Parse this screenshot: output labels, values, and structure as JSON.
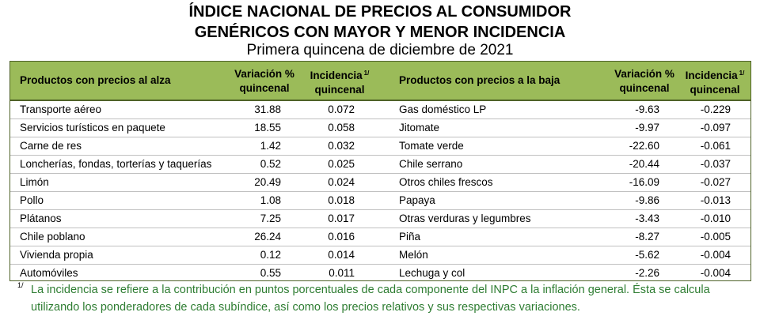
{
  "title_line1": "ÍNDICE NACIONAL DE PRECIOS AL CONSUMIDOR",
  "title_line2": "GENÉRICOS CON MAYOR Y MENOR INCIDENCIA",
  "subtitle": "Primera quincena de diciembre de 2021",
  "headers": {
    "up_products": "Productos con precios al alza",
    "up_var_l1": "Variación %",
    "up_var_l2": "quincenal",
    "up_inc_l1": "Incidencia",
    "up_inc_sup": "1/",
    "up_inc_l2": "quincenal",
    "down_products": "Productos con precios a la baja",
    "down_var_l1": "Variación %",
    "down_var_l2": "quincenal",
    "down_inc_l1": "Incidencia",
    "down_inc_sup": "1/",
    "down_inc_l2": "quincenal"
  },
  "rows": [
    {
      "up": "Transporte aéreo",
      "up_var": "31.88",
      "up_inc": "0.072",
      "down": "Gas doméstico LP",
      "down_var": "-9.63",
      "down_inc": "-0.229"
    },
    {
      "up": "Servicios turísticos en paquete",
      "up_var": "18.55",
      "up_inc": "0.058",
      "down": "Jitomate",
      "down_var": "-9.97",
      "down_inc": "-0.097"
    },
    {
      "up": "Carne de res",
      "up_var": "1.42",
      "up_inc": "0.032",
      "down": "Tomate verde",
      "down_var": "-22.60",
      "down_inc": "-0.061"
    },
    {
      "up": "Loncherías, fondas, torterías y taquerías",
      "up_var": "0.52",
      "up_inc": "0.025",
      "down": "Chile serrano",
      "down_var": "-20.44",
      "down_inc": "-0.037"
    },
    {
      "up": "Limón",
      "up_var": "20.49",
      "up_inc": "0.024",
      "down": "Otros chiles frescos",
      "down_var": "-16.09",
      "down_inc": "-0.027"
    },
    {
      "up": "Pollo",
      "up_var": "1.08",
      "up_inc": "0.018",
      "down": "Papaya",
      "down_var": "-9.86",
      "down_inc": "-0.013"
    },
    {
      "up": "Plátanos",
      "up_var": "7.25",
      "up_inc": "0.017",
      "down": "Otras verduras y legumbres",
      "down_var": "-3.43",
      "down_inc": "-0.010"
    },
    {
      "up": "Chile poblano",
      "up_var": "26.24",
      "up_inc": "0.016",
      "down": "Piña",
      "down_var": "-8.27",
      "down_inc": "-0.005"
    },
    {
      "up": "Vivienda propia",
      "up_var": "0.12",
      "up_inc": "0.014",
      "down": "Melón",
      "down_var": "-5.62",
      "down_inc": "-0.004"
    },
    {
      "up": "Automóviles",
      "up_var": "0.55",
      "up_inc": "0.011",
      "down": "Lechuga y col",
      "down_var": "-2.26",
      "down_inc": "-0.004"
    }
  ],
  "footnote_mark": "1/",
  "footnote": "La incidencia se refiere a la contribución en puntos porcentuales de cada componente del INPC a la inflación general. Ésta se calcula utilizando los ponderadores de cada subíndice, así como los precios relativos y sus respectivas variaciones.",
  "colors": {
    "header_bg": "#9bbb59",
    "border": "#4f6228",
    "footnote_text": "#2e7d32"
  }
}
